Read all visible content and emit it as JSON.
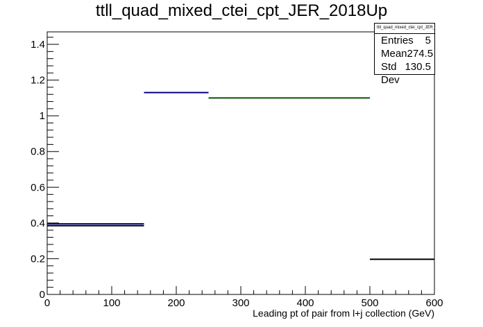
{
  "chart_data": {
    "type": "step",
    "title": "ttll_quad_mixed_ctei_cpt_JER_2018Up",
    "xlabel": "Leading pt of pair from l+j collection (GeV)",
    "ylabel": "",
    "xlim": [
      0,
      600
    ],
    "ylim": [
      0,
      1.47
    ],
    "x_ticks": [
      0,
      100,
      200,
      300,
      400,
      500,
      600
    ],
    "y_ticks": [
      0,
      0.2,
      0.4,
      0.6,
      0.8,
      1,
      1.2,
      1.4
    ],
    "series": [
      {
        "color": "#000080",
        "segments": [
          [
            0,
            150,
            0.395
          ],
          [
            150,
            250,
            1.13
          ]
        ]
      },
      {
        "color": "#000000",
        "segments": [
          [
            0,
            150,
            0.385
          ]
        ]
      },
      {
        "color": "#005500",
        "segments": [
          [
            250,
            500,
            1.1
          ]
        ]
      },
      {
        "color": "#000000",
        "segments": [
          [
            500,
            600,
            0.197
          ]
        ]
      }
    ],
    "stats_box": {
      "header": "ttll_quad_mixed_ctei_cpt_JER_2018Up",
      "rows": [
        {
          "label": "Entries",
          "value": "5"
        },
        {
          "label": "Mean",
          "value": "274.5"
        },
        {
          "label": "Std Dev",
          "value": "130.5"
        }
      ]
    }
  }
}
